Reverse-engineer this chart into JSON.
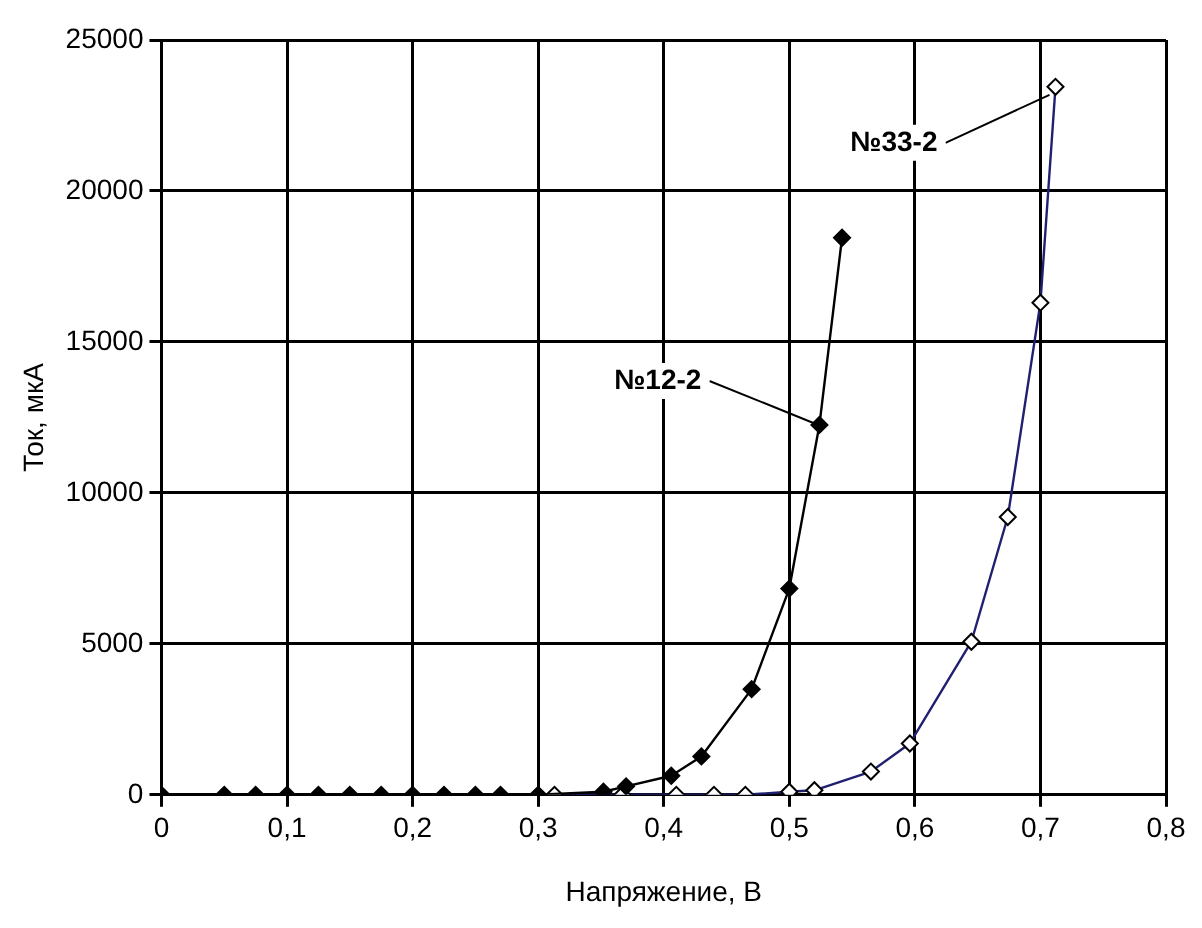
{
  "chart_data": {
    "type": "line",
    "xlabel": "Напряжение, В",
    "ylabel": "Ток, мкА",
    "xlim": [
      0,
      0.8
    ],
    "xticks": [
      0,
      {
        "value": 0.1,
        "label": "0,1"
      },
      {
        "value": 0.2,
        "label": "0,2"
      },
      {
        "value": 0.3,
        "label": "0,3"
      },
      {
        "value": 0.4,
        "label": "0,4"
      },
      {
        "value": 0.5,
        "label": "0,5"
      },
      {
        "value": 0.6,
        "label": "0,6"
      },
      {
        "value": 0.7,
        "label": "0,7"
      },
      {
        "value": 0.8,
        "label": "0,8"
      }
    ],
    "ylim": [
      0,
      25000
    ],
    "yticks": [
      0,
      5000,
      10000,
      15000,
      20000,
      25000
    ],
    "grid": true,
    "legend": false,
    "marker": "diamond",
    "series": [
      {
        "color": "#000000",
        "x": [
          0,
          0.05,
          0.075,
          0.1,
          0.125,
          0.15,
          0.175,
          0.2,
          0.225,
          0.25,
          0.27,
          0.3,
          0.352,
          0.37,
          0.406,
          0.43,
          0.47,
          0.5,
          0.524,
          0.542
        ],
        "values": [
          0,
          0,
          0,
          0,
          0,
          0,
          0,
          0,
          0,
          0,
          0,
          0,
          100,
          280,
          630,
          1270,
          3500,
          6830,
          12250,
          18450
        ]
      },
      {
        "color": "#202070",
        "x": [
          0.313,
          0.367,
          0.41,
          0.44,
          0.465,
          0.5,
          0.52,
          0.565,
          0.596,
          0.645,
          0.674,
          0.7,
          0.712
        ],
        "values": [
          0,
          0,
          0,
          0,
          0,
          100,
          150,
          770,
          1700,
          5070,
          9200,
          16300,
          23450
        ]
      }
    ],
    "annotations": [
      {
        "text": "№12-2",
        "x": 0.524,
        "y": 12250
      },
      {
        "text": "№33-2",
        "x": 0.712,
        "y": 23450
      }
    ]
  }
}
